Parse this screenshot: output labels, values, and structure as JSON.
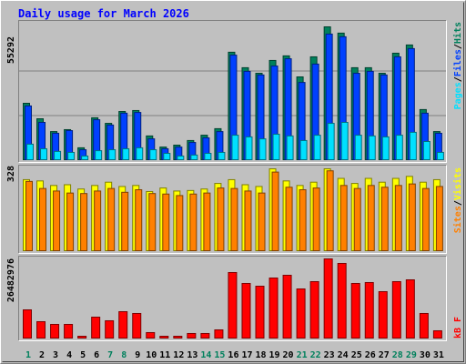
{
  "title": "Daily usage for March 2026",
  "legend_separator": "/",
  "weekday_color": "#000000",
  "weekend_color": "#00805c",
  "weekend_indices": [
    0,
    6,
    7,
    13,
    14,
    20,
    21,
    27,
    28
  ],
  "chart_data": [
    {
      "type": "bar",
      "grid": true,
      "ylim": [
        0,
        55292
      ],
      "yticks": [
        55292
      ],
      "series": [
        {
          "name": "Pages",
          "color": "#00e0ff",
          "values": [
            6800,
            4900,
            3800,
            3400,
            1900,
            4100,
            4500,
            4900,
            5300,
            4500,
            3000,
            1900,
            2300,
            3000,
            3400,
            10500,
            9800,
            9000,
            10900,
            10200,
            8300,
            10500,
            15400,
            15800,
            10500,
            10200,
            9800,
            10500,
            11700,
            7900,
            3400
          ]
        },
        {
          "name": "Files",
          "color": "#0040ff",
          "values": [
            22600,
            15800,
            11300,
            12400,
            4500,
            16900,
            14700,
            19600,
            19900,
            9000,
            4900,
            5600,
            7500,
            9400,
            12000,
            43600,
            36900,
            35400,
            39100,
            42100,
            32300,
            39900,
            52300,
            51200,
            36100,
            36900,
            35400,
            42900,
            46300,
            19600,
            11300
          ]
        },
        {
          "name": "Hits",
          "color": "#00805c",
          "values": [
            23700,
            17300,
            12000,
            12800,
            5300,
            17700,
            15400,
            20300,
            20700,
            10200,
            5600,
            6400,
            8300,
            10500,
            13200,
            44800,
            38400,
            36100,
            41400,
            43300,
            34600,
            42900,
            55292,
            52700,
            38400,
            38400,
            36100,
            44400,
            47800,
            21100,
            12000
          ]
        }
      ]
    },
    {
      "type": "bar",
      "ylim": [
        0,
        328
      ],
      "yticks": [
        328
      ],
      "series": [
        {
          "name": "Sites",
          "color": "#ff8000",
          "values": [
            278,
            250,
            240,
            232,
            230,
            240,
            250,
            235,
            245,
            230,
            228,
            222,
            228,
            232,
            252,
            250,
            240,
            232,
            315,
            255,
            245,
            252,
            320,
            262,
            250,
            262,
            255,
            262,
            268,
            250,
            258
          ]
        },
        {
          "name": "Visits",
          "color": "#ffff00",
          "values": [
            285,
            280,
            262,
            265,
            248,
            262,
            275,
            258,
            262,
            238,
            252,
            240,
            242,
            248,
            270,
            285,
            265,
            258,
            328,
            280,
            262,
            275,
            328,
            290,
            270,
            290,
            275,
            290,
            298,
            275,
            285
          ]
        }
      ]
    },
    {
      "type": "bar",
      "ylim": [
        0,
        26482976
      ],
      "yticks": [
        26482976
      ],
      "categories": [
        "1",
        "2",
        "3",
        "4",
        "5",
        "6",
        "7",
        "8",
        "9",
        "10",
        "11",
        "12",
        "13",
        "14",
        "15",
        "16",
        "17",
        "18",
        "19",
        "20",
        "21",
        "22",
        "23",
        "24",
        "25",
        "26",
        "27",
        "28",
        "29",
        "30",
        "31"
      ],
      "series": [
        {
          "name": "kB F",
          "color": "#ff0000",
          "values": [
            9630000,
            5720000,
            4820000,
            4820000,
            900000,
            7220000,
            6020000,
            9030000,
            8430000,
            2110000,
            900000,
            900000,
            1810000,
            1810000,
            3010000,
            21970000,
            18360000,
            17450000,
            20160000,
            21070000,
            16550000,
            18960000,
            26482976,
            24980000,
            18360000,
            18660000,
            15650000,
            18960000,
            19560000,
            8430000,
            2710000
          ]
        }
      ]
    }
  ]
}
